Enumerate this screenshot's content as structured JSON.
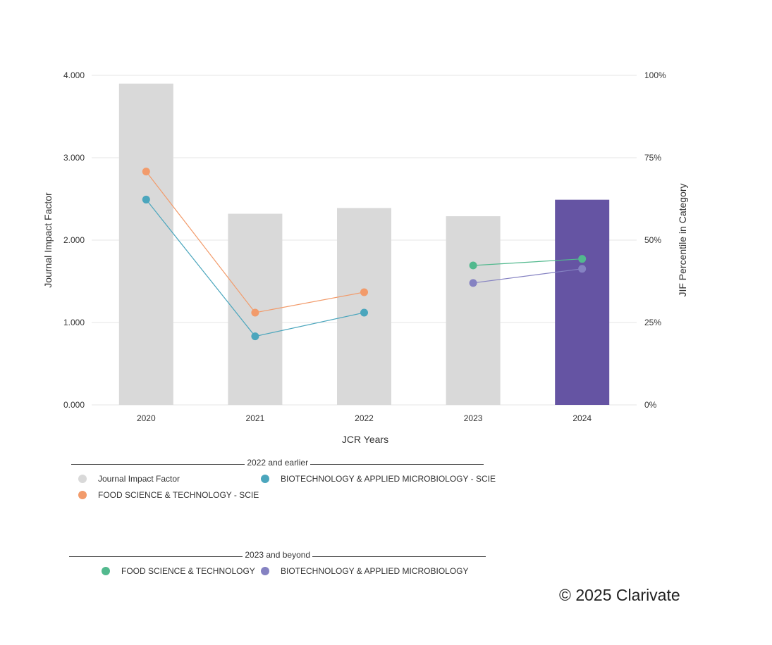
{
  "chart_data": {
    "type": "bar",
    "xlabel": "JCR Years",
    "ylabel": "Journal Impact Factor",
    "y2label": "JIF Percentile in Category",
    "categories": [
      "2020",
      "2021",
      "2022",
      "2023",
      "2024"
    ],
    "ylim": [
      0,
      4
    ],
    "y_ticks": [
      "0.000",
      "1.000",
      "2.000",
      "3.000",
      "4.000"
    ],
    "y2lim": [
      0,
      100
    ],
    "y2_ticks": [
      "0%",
      "25%",
      "50%",
      "75%",
      "100%"
    ],
    "grid": true,
    "bars": {
      "name": "Journal Impact Factor",
      "values": [
        3.9,
        2.32,
        2.39,
        2.29,
        2.49
      ],
      "colors": [
        "#d9d9d9",
        "#d9d9d9",
        "#d9d9d9",
        "#d9d9d9",
        "#6554a3"
      ]
    },
    "lines": [
      {
        "name": "FOOD SCIENCE & TECHNOLOGY - SCIE",
        "color": "#f29b6b",
        "axis": "y2",
        "x": [
          "2020",
          "2021",
          "2022"
        ],
        "values": [
          70.8,
          28.0,
          34.2
        ]
      },
      {
        "name": "BIOTECHNOLOGY & APPLIED MICROBIOLOGY - SCIE",
        "color": "#4ba6bd",
        "axis": "y2",
        "x": [
          "2020",
          "2021",
          "2022"
        ],
        "values": [
          62.3,
          20.8,
          28.0
        ]
      },
      {
        "name": "FOOD SCIENCE & TECHNOLOGY",
        "color": "#52b98e",
        "axis": "y2",
        "x": [
          "2023",
          "2024"
        ],
        "values": [
          42.3,
          44.3
        ]
      },
      {
        "name": "BIOTECHNOLOGY & APPLIED MICROBIOLOGY",
        "color": "#8582c2",
        "axis": "y2",
        "x": [
          "2023",
          "2024"
        ],
        "values": [
          37.0,
          41.3
        ]
      }
    ]
  },
  "legend": {
    "group1_title": "2022 and earlier",
    "group1_items": [
      {
        "label": "Journal Impact Factor",
        "color": "#d9d9d9"
      },
      {
        "label": "BIOTECHNOLOGY & APPLIED MICROBIOLOGY - SCIE",
        "color": "#4ba6bd"
      },
      {
        "label": "FOOD SCIENCE & TECHNOLOGY - SCIE",
        "color": "#f29b6b"
      }
    ],
    "group2_title": "2023 and beyond",
    "group2_items": [
      {
        "label": "FOOD SCIENCE & TECHNOLOGY",
        "color": "#52b98e"
      },
      {
        "label": "BIOTECHNOLOGY & APPLIED MICROBIOLOGY",
        "color": "#8582c2"
      }
    ]
  },
  "copyright": "© 2025 Clarivate"
}
